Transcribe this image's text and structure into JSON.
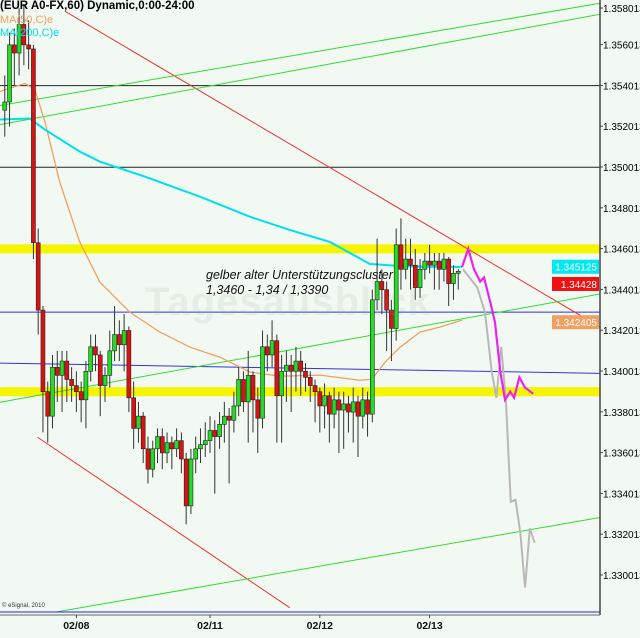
{
  "header": {
    "title": "(EUR A0-FX,60) Dynamic,0:00-24:00",
    "ma_fast": "MA(50,C)e",
    "ma_slow": "MA(200,C)e"
  },
  "annotation": {
    "line1": "gelber alter Unterstützungscluster",
    "line2": "1,3460 - 1,34 / 1,3390"
  },
  "watermark": "Tagesausblick",
  "copyright": "© eSignal, 2010",
  "colors": {
    "background": "#f2f9f2",
    "up": "#22dd22",
    "down": "#dd1111",
    "support": "#f5f500",
    "ma_fast": "#f0a060",
    "ma_slow": "#00e0e8",
    "forecast_primary": "#ee22ee",
    "forecast_alt": "#b8b8b8",
    "trend_down": "#ee3333",
    "trend_up": "#33dd33",
    "level_blue": "#3333dd"
  },
  "chart_data": {
    "type": "candlestick",
    "title": "(EUR A0-FX,60) Dynamic,0:00-24:00",
    "ylim": [
      1.3282,
      1.3582
    ],
    "xlim": [
      -1,
      124.7
    ],
    "grid": false,
    "y_ticks": [
      "1.358013",
      "1.356013",
      "1.354013",
      "1.352013",
      "1.350013",
      "1.348013",
      "1.346013",
      "1.344013",
      "1.342013",
      "1.340013",
      "1.338013",
      "1.336013",
      "1.334013",
      "1.332013",
      "1.330013"
    ],
    "x_ticks": [
      {
        "label": "02/08",
        "index": 15
      },
      {
        "label": "02/11",
        "index": 43
      },
      {
        "label": "02/12",
        "index": 66
      },
      {
        "label": "02/13",
        "index": 89
      }
    ],
    "ohlc": [
      [
        1.3528,
        1.3545,
        1.3515,
        1.3532
      ],
      [
        1.3532,
        1.3566,
        1.352,
        1.356
      ],
      [
        1.356,
        1.3568,
        1.354,
        1.3556
      ],
      [
        1.3556,
        1.3578,
        1.3545,
        1.357
      ],
      [
        1.357,
        1.358,
        1.355,
        1.356
      ],
      [
        1.356,
        1.3572,
        1.3548,
        1.3558
      ],
      [
        1.3558,
        1.356,
        1.3455,
        1.3463
      ],
      [
        1.3463,
        1.347,
        1.3418,
        1.343
      ],
      [
        1.343,
        1.3432,
        1.337,
        1.339
      ],
      [
        1.339,
        1.3395,
        1.3365,
        1.3378
      ],
      [
        1.3378,
        1.3408,
        1.3372,
        1.3402
      ],
      [
        1.3402,
        1.341,
        1.3385,
        1.3398
      ],
      [
        1.3398,
        1.341,
        1.338,
        1.3405
      ],
      [
        1.3405,
        1.341,
        1.3385,
        1.3396
      ],
      [
        1.3396,
        1.3402,
        1.3385,
        1.3393
      ],
      [
        1.3393,
        1.34,
        1.338,
        1.339
      ],
      [
        1.339,
        1.3395,
        1.3375,
        1.3386
      ],
      [
        1.3386,
        1.3405,
        1.3372,
        1.34
      ],
      [
        1.34,
        1.3418,
        1.3395,
        1.3412
      ],
      [
        1.3412,
        1.3418,
        1.34,
        1.3408
      ],
      [
        1.3408,
        1.341,
        1.3378,
        1.3393
      ],
      [
        1.3393,
        1.3402,
        1.3385,
        1.3398
      ],
      [
        1.3398,
        1.342,
        1.3392,
        1.341
      ],
      [
        1.341,
        1.3432,
        1.3405,
        1.3418
      ],
      [
        1.3418,
        1.3425,
        1.3405,
        1.3413
      ],
      [
        1.3413,
        1.3428,
        1.34,
        1.342
      ],
      [
        1.342,
        1.3422,
        1.338,
        1.3387
      ],
      [
        1.3387,
        1.3395,
        1.3362,
        1.3372
      ],
      [
        1.3372,
        1.3385,
        1.3365,
        1.3378
      ],
      [
        1.3378,
        1.338,
        1.3355,
        1.3362
      ],
      [
        1.3362,
        1.3368,
        1.3345,
        1.3352
      ],
      [
        1.3352,
        1.3366,
        1.3348,
        1.3362
      ],
      [
        1.3362,
        1.3372,
        1.3355,
        1.3368
      ],
      [
        1.3368,
        1.3372,
        1.3352,
        1.336
      ],
      [
        1.336,
        1.337,
        1.3355,
        1.3365
      ],
      [
        1.3365,
        1.3368,
        1.3352,
        1.3362
      ],
      [
        1.3362,
        1.3372,
        1.3358,
        1.3366
      ],
      [
        1.3366,
        1.337,
        1.335,
        1.3357
      ],
      [
        1.3357,
        1.336,
        1.3325,
        1.3334
      ],
      [
        1.3334,
        1.3362,
        1.333,
        1.3357
      ],
      [
        1.3357,
        1.3368,
        1.335,
        1.3362
      ],
      [
        1.3362,
        1.3372,
        1.3355,
        1.3364
      ],
      [
        1.3364,
        1.3375,
        1.3358,
        1.3366
      ],
      [
        1.3366,
        1.3378,
        1.336,
        1.3371
      ],
      [
        1.3371,
        1.3376,
        1.334,
        1.3368
      ],
      [
        1.3368,
        1.338,
        1.3362,
        1.3374
      ],
      [
        1.3374,
        1.3385,
        1.3365,
        1.3378
      ],
      [
        1.3378,
        1.3382,
        1.3345,
        1.3376
      ],
      [
        1.3376,
        1.339,
        1.337,
        1.3383
      ],
      [
        1.3383,
        1.3402,
        1.3378,
        1.3396
      ],
      [
        1.3396,
        1.34,
        1.338,
        1.3385
      ],
      [
        1.3385,
        1.341,
        1.3365,
        1.3398
      ],
      [
        1.3398,
        1.34,
        1.337,
        1.3386
      ],
      [
        1.3386,
        1.3392,
        1.336,
        1.3377
      ],
      [
        1.3377,
        1.342,
        1.3372,
        1.3412
      ],
      [
        1.3412,
        1.3418,
        1.34,
        1.3408
      ],
      [
        1.3408,
        1.3425,
        1.3402,
        1.3415
      ],
      [
        1.3415,
        1.3418,
        1.3365,
        1.3388
      ],
      [
        1.3388,
        1.3408,
        1.3365,
        1.34
      ],
      [
        1.34,
        1.341,
        1.3385,
        1.3403
      ],
      [
        1.3403,
        1.3408,
        1.338,
        1.34
      ],
      [
        1.34,
        1.3412,
        1.339,
        1.3405
      ],
      [
        1.3405,
        1.341,
        1.3388,
        1.34
      ],
      [
        1.34,
        1.3404,
        1.339,
        1.3397
      ],
      [
        1.3397,
        1.34,
        1.3385,
        1.3393
      ],
      [
        1.3393,
        1.3396,
        1.3375,
        1.339
      ],
      [
        1.339,
        1.3392,
        1.337,
        1.3383
      ],
      [
        1.3383,
        1.3394,
        1.3372,
        1.3388
      ],
      [
        1.3388,
        1.339,
        1.3365,
        1.3379
      ],
      [
        1.3379,
        1.3392,
        1.3372,
        1.3386
      ],
      [
        1.3386,
        1.339,
        1.336,
        1.3381
      ],
      [
        1.3381,
        1.339,
        1.3362,
        1.3384
      ],
      [
        1.3384,
        1.3388,
        1.337,
        1.338
      ],
      [
        1.338,
        1.3392,
        1.3365,
        1.3385
      ],
      [
        1.3385,
        1.3388,
        1.3358,
        1.3378
      ],
      [
        1.3378,
        1.3392,
        1.3372,
        1.3386
      ],
      [
        1.3386,
        1.339,
        1.3368,
        1.3379
      ],
      [
        1.3379,
        1.344,
        1.3375,
        1.3435
      ],
      [
        1.3435,
        1.3465,
        1.343,
        1.3444
      ],
      [
        1.3444,
        1.345,
        1.3428,
        1.344
      ],
      [
        1.344,
        1.3444,
        1.341,
        1.343
      ],
      [
        1.343,
        1.3435,
        1.3405,
        1.3421
      ],
      [
        1.3421,
        1.347,
        1.3415,
        1.3462
      ],
      [
        1.3462,
        1.3475,
        1.344,
        1.345
      ],
      [
        1.345,
        1.3465,
        1.3445,
        1.3455
      ],
      [
        1.3455,
        1.3465,
        1.344,
        1.3452
      ],
      [
        1.3452,
        1.346,
        1.3435,
        1.3441
      ],
      [
        1.3441,
        1.3455,
        1.3436,
        1.345
      ],
      [
        1.345,
        1.3458,
        1.3445,
        1.3454
      ],
      [
        1.3454,
        1.3462,
        1.3448,
        1.3452
      ],
      [
        1.3452,
        1.3458,
        1.344,
        1.3454
      ],
      [
        1.3454,
        1.3458,
        1.344,
        1.345
      ],
      [
        1.345,
        1.3458,
        1.3444,
        1.3455
      ],
      [
        1.3455,
        1.3456,
        1.3432,
        1.3443
      ],
      [
        1.3443,
        1.3452,
        1.3435,
        1.3448
      ],
      [
        1.3448,
        1.345,
        1.344,
        1.3449
      ]
    ],
    "ma_fast": [
      [
        -1,
        1.35372
      ],
      [
        4.2,
        1.35411
      ],
      [
        6.3,
        1.35381
      ],
      [
        8.4,
        1.35224
      ],
      [
        11.5,
        1.34929
      ],
      [
        15.7,
        1.34634
      ],
      [
        19.9,
        1.34438
      ],
      [
        26.2,
        1.3429
      ],
      [
        32.5,
        1.34192
      ],
      [
        38.8,
        1.34118
      ],
      [
        45.1,
        1.34069
      ],
      [
        51.4,
        1.33996
      ],
      [
        57.7,
        1.33976
      ],
      [
        66,
        1.33981
      ],
      [
        74.4,
        1.33956
      ],
      [
        76.9,
        1.33961
      ],
      [
        79.7,
        1.34045
      ],
      [
        82.8,
        1.34118
      ],
      [
        87,
        1.34192
      ],
      [
        91.2,
        1.34217
      ],
      [
        95.8,
        1.34251
      ]
    ],
    "ma_slow": [
      [
        -1,
        1.35234
      ],
      [
        5.2,
        1.35239
      ],
      [
        8.4,
        1.35185
      ],
      [
        15.7,
        1.35077
      ],
      [
        19.9,
        1.35028
      ],
      [
        29.4,
        1.34954
      ],
      [
        40.9,
        1.34856
      ],
      [
        51.4,
        1.34757
      ],
      [
        59.7,
        1.34693
      ],
      [
        68.1,
        1.34634
      ],
      [
        76.5,
        1.34526
      ],
      [
        82.8,
        1.34516
      ],
      [
        89.1,
        1.34512
      ],
      [
        95.8,
        1.34512
      ]
    ],
    "forecast_primary": [
      [
        95.8,
        1.34512
      ],
      [
        97.1,
        1.346
      ],
      [
        98.3,
        1.345
      ],
      [
        99.6,
        1.3444
      ],
      [
        100.4,
        1.3446
      ],
      [
        101.7,
        1.3434
      ],
      [
        102.7,
        1.3424
      ],
      [
        103.8,
        1.34
      ],
      [
        104.8,
        1.3386
      ],
      [
        105.9,
        1.339
      ],
      [
        106.7,
        1.3387
      ],
      [
        107.8,
        1.3397
      ],
      [
        109,
        1.3392
      ],
      [
        110.7,
        1.3389
      ]
    ],
    "forecast_alt": [
      [
        96,
        1.345
      ],
      [
        99,
        1.3441
      ],
      [
        100.6,
        1.3429
      ],
      [
        102,
        1.34
      ],
      [
        103,
        1.3387
      ],
      [
        104,
        1.3412
      ],
      [
        105,
        1.3385
      ],
      [
        106,
        1.3336
      ],
      [
        107,
        1.3337
      ],
      [
        108,
        1.3321
      ],
      [
        109,
        1.3294
      ],
      [
        110,
        1.3323
      ],
      [
        111,
        1.3316
      ]
    ],
    "support_zones": [
      1.346,
      1.339
    ],
    "horizontal_lines": [
      {
        "price": 1.354,
        "color": "#222222"
      },
      {
        "price": 1.35,
        "color": "#222222"
      },
      {
        "price": 1.3429,
        "color": "#3333dd"
      }
    ],
    "sloped_lines": [
      {
        "color": "#3333dd",
        "from": [
          -1,
          1.3404
        ],
        "to": [
          124.7,
          1.3399
        ]
      },
      {
        "color": "#ee3333",
        "from": [
          12.6,
          1.35765
        ],
        "to": [
          124.7,
          1.34217
        ]
      },
      {
        "color": "#ee3333",
        "from": [
          6.9,
          1.33676
        ],
        "to": [
          59.7,
          1.32841
        ]
      },
      {
        "color": "#33dd33",
        "from": [
          -1,
          1.35303
        ],
        "to": [
          124.7,
          1.35804
        ]
      },
      {
        "color": "#33dd33",
        "from": [
          -1,
          1.35209
        ],
        "to": [
          124.7,
          1.3575
        ]
      },
      {
        "color": "#33dd33",
        "from": [
          -1,
          1.33848
        ],
        "to": [
          124.7,
          1.34379
        ]
      },
      {
        "color": "#33dd33",
        "from": [
          7.3,
          1.32806
        ],
        "to": [
          124.7,
          1.33283
        ]
      }
    ],
    "price_tags": [
      {
        "label": "1.345125",
        "price": 1.345125,
        "color": "#00e8f0",
        "text_color": "#ffffff"
      },
      {
        "label": "1.34428",
        "price": 1.34428,
        "color": "#ee1111",
        "text_color": "#ffffff"
      },
      {
        "label": "1.342405",
        "price": 1.342405,
        "color": "#f0a060",
        "text_color": "#ffffff"
      }
    ]
  }
}
